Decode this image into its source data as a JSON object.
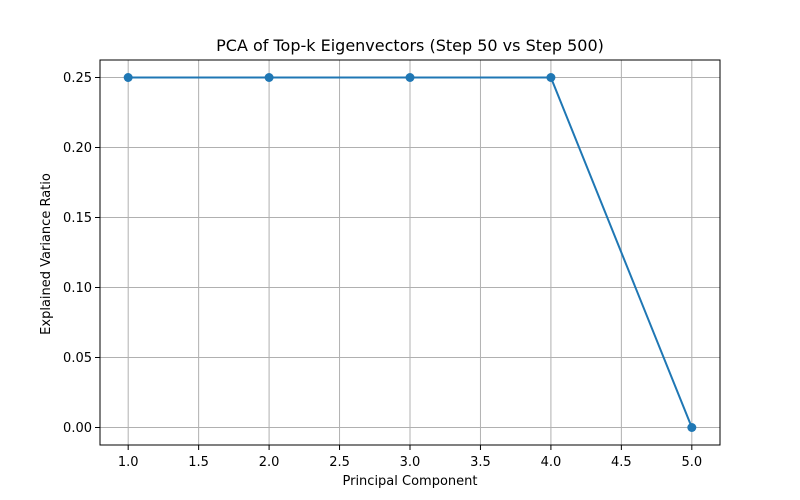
{
  "chart_data": {
    "type": "line",
    "title": "PCA of Top-k Eigenvectors (Step 50 vs Step 500)",
    "xlabel": "Principal Component",
    "ylabel": "Explained Variance Ratio",
    "xlim": [
      0.8,
      5.2
    ],
    "ylim": [
      -0.0125,
      0.2625
    ],
    "x_ticks": [
      1.0,
      1.5,
      2.0,
      2.5,
      3.0,
      3.5,
      4.0,
      4.5,
      5.0
    ],
    "x_tick_labels": [
      "1.0",
      "1.5",
      "2.0",
      "2.5",
      "3.0",
      "3.5",
      "4.0",
      "4.5",
      "5.0"
    ],
    "y_ticks": [
      0.0,
      0.05,
      0.1,
      0.15,
      0.2,
      0.25
    ],
    "y_tick_labels": [
      "0.00",
      "0.05",
      "0.10",
      "0.15",
      "0.20",
      "0.25"
    ],
    "grid": true,
    "series": [
      {
        "x": [
          1,
          2,
          3,
          4,
          5
        ],
        "y": [
          0.25,
          0.25,
          0.25,
          0.25,
          0.0
        ],
        "color": "#1f77b4",
        "marker": "circle"
      }
    ]
  }
}
